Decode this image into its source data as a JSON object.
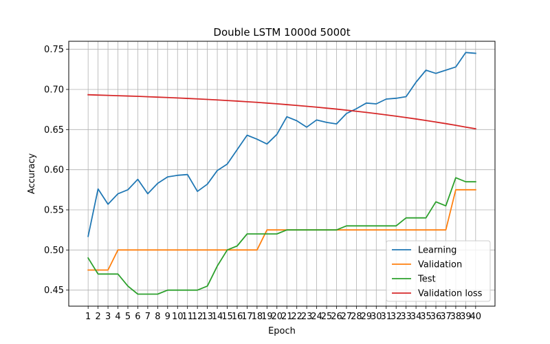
{
  "chart_data": {
    "type": "line",
    "title": "Double LSTM 1000d 5000t",
    "xlabel": "Epoch",
    "ylabel": "Accuracy",
    "x": [
      1,
      2,
      3,
      4,
      5,
      6,
      7,
      8,
      9,
      10,
      11,
      12,
      13,
      14,
      15,
      16,
      17,
      18,
      19,
      20,
      21,
      22,
      23,
      24,
      25,
      26,
      27,
      28,
      29,
      30,
      31,
      32,
      33,
      34,
      35,
      36,
      37,
      38,
      39,
      40
    ],
    "xlim": [
      -0.95,
      41.95
    ],
    "ylim": [
      0.43,
      0.76
    ],
    "yticks": [
      0.45,
      0.5,
      0.55,
      0.6,
      0.65,
      0.7,
      0.75
    ],
    "ytick_labels": [
      "0.45",
      "0.50",
      "0.55",
      "0.60",
      "0.65",
      "0.70",
      "0.75"
    ],
    "grid": true,
    "legend_position": "lower-right",
    "series": [
      {
        "name": "Learning",
        "color": "#1f77b4",
        "values": [
          0.517,
          0.576,
          0.557,
          0.57,
          0.575,
          0.588,
          0.57,
          0.583,
          0.591,
          0.593,
          0.594,
          0.573,
          0.582,
          0.599,
          0.607,
          0.625,
          0.643,
          0.638,
          0.632,
          0.644,
          0.666,
          0.661,
          0.653,
          0.662,
          0.659,
          0.657,
          0.67,
          0.676,
          0.683,
          0.682,
          0.688,
          0.689,
          0.691,
          0.709,
          0.724,
          0.72,
          0.724,
          0.728,
          0.746,
          0.745
        ]
      },
      {
        "name": "Validation",
        "color": "#ff7f0e",
        "values": [
          0.475,
          0.475,
          0.475,
          0.5,
          0.5,
          0.5,
          0.5,
          0.5,
          0.5,
          0.5,
          0.5,
          0.5,
          0.5,
          0.5,
          0.5,
          0.5,
          0.5,
          0.5,
          0.525,
          0.525,
          0.525,
          0.525,
          0.525,
          0.525,
          0.525,
          0.525,
          0.525,
          0.525,
          0.525,
          0.525,
          0.525,
          0.525,
          0.525,
          0.525,
          0.525,
          0.525,
          0.525,
          0.575,
          0.575,
          0.575
        ]
      },
      {
        "name": "Test",
        "color": "#2ca02c",
        "values": [
          0.49,
          0.47,
          0.47,
          0.47,
          0.455,
          0.445,
          0.445,
          0.445,
          0.45,
          0.45,
          0.45,
          0.45,
          0.455,
          0.48,
          0.5,
          0.505,
          0.52,
          0.52,
          0.52,
          0.52,
          0.525,
          0.525,
          0.525,
          0.525,
          0.525,
          0.525,
          0.53,
          0.53,
          0.53,
          0.53,
          0.53,
          0.53,
          0.54,
          0.54,
          0.54,
          0.56,
          0.555,
          0.59,
          0.585,
          0.585
        ]
      },
      {
        "name": "Validation loss",
        "color": "#d62728",
        "values": [
          0.6934,
          0.693,
          0.6926,
          0.6922,
          0.6918,
          0.6914,
          0.6909,
          0.6904,
          0.6899,
          0.6894,
          0.6888,
          0.6882,
          0.6876,
          0.6869,
          0.6862,
          0.6855,
          0.6847,
          0.6839,
          0.683,
          0.6821,
          0.6811,
          0.6801,
          0.679,
          0.6779,
          0.6767,
          0.6755,
          0.6742,
          0.6728,
          0.6714,
          0.6699,
          0.6683,
          0.6667,
          0.665,
          0.6632,
          0.6613,
          0.6594,
          0.6574,
          0.6553,
          0.6531,
          0.651
        ]
      }
    ]
  }
}
